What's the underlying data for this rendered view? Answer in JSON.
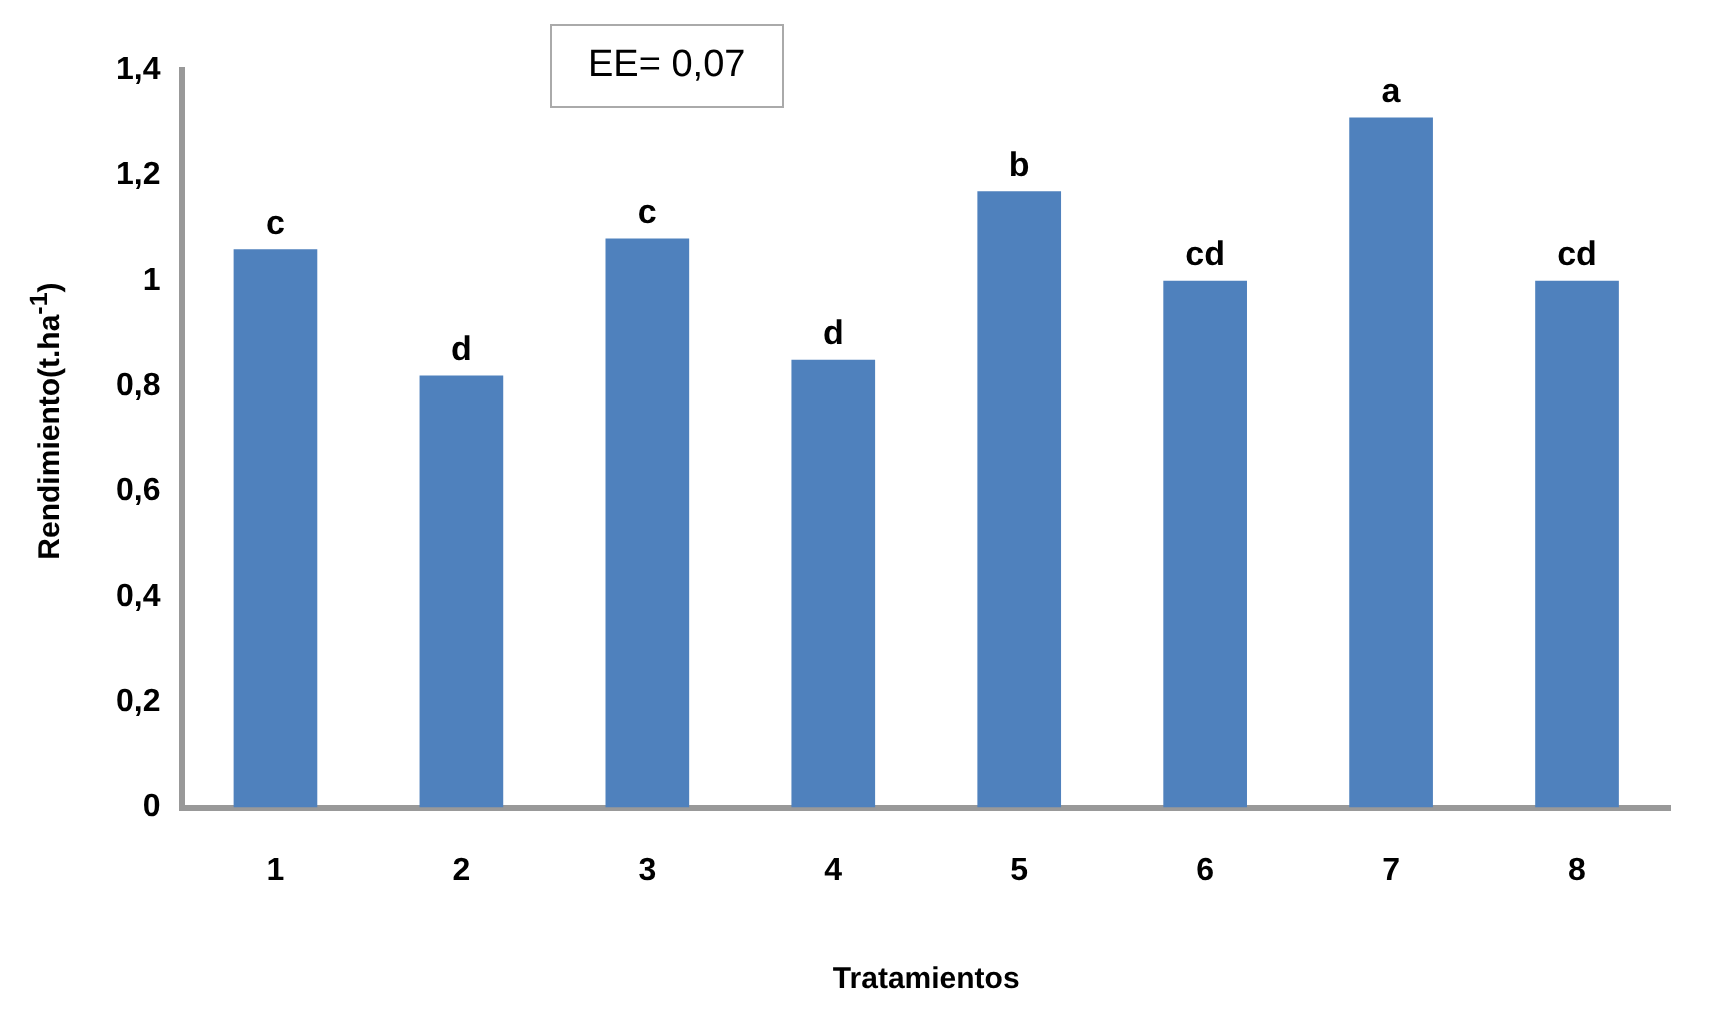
{
  "chart_data": {
    "type": "bar",
    "xlabel": "Tratamientos",
    "ylabel": "Rendimiento(t.ha$^{-1}$)",
    "categories": [
      "1",
      "2",
      "3",
      "4",
      "5",
      "6",
      "7",
      "8"
    ],
    "values": [
      1.06,
      0.82,
      1.08,
      0.85,
      1.17,
      1.0,
      1.31,
      1.0
    ],
    "color": "#4f81bd",
    "ylim": [
      0,
      1.4
    ],
    "yticks": [
      {
        "value": 0,
        "label": "0"
      },
      {
        "value": 0.2,
        "label": "0,2"
      },
      {
        "value": 0.4,
        "label": "0,4"
      },
      {
        "value": 0.6,
        "label": "0,6"
      },
      {
        "value": 0.8,
        "label": "0,8"
      },
      {
        "value": 1,
        "label": "1"
      },
      {
        "value": 1.2,
        "label": "1,2"
      },
      {
        "value": 1.4,
        "label": "1,4"
      }
    ],
    "grid": false,
    "legend": false,
    "annotations": [
      "EE= 0,07",
      {
        "text": "c",
        "x": "1",
        "y": 1.06
      },
      {
        "text": "d",
        "x": "2",
        "y": 0.82
      },
      {
        "text": "c",
        "x": "3",
        "y": 1.08
      },
      {
        "text": "d",
        "x": "4",
        "y": 0.85
      },
      {
        "text": "b",
        "x": "5",
        "y": 1.17
      },
      {
        "text": "cd",
        "x": "6",
        "y": 1.0
      },
      {
        "text": "a",
        "x": "7",
        "y": 1.31
      },
      {
        "text": "cd",
        "x": "8",
        "y": 1.0
      }
    ]
  }
}
